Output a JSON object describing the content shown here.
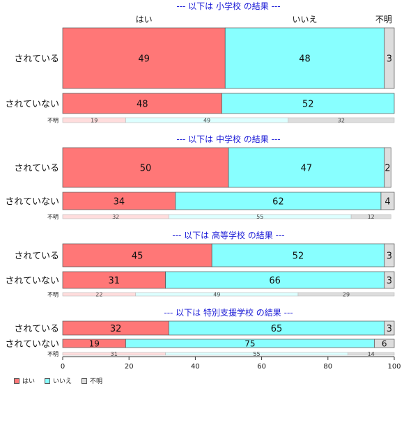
{
  "chart_data": {
    "type": "bar",
    "orientation": "horizontal-stacked-percent",
    "xlim": [
      0,
      100
    ],
    "xticks": [
      0,
      20,
      40,
      60,
      80,
      100
    ],
    "top_header": [
      "はい",
      "いいえ",
      "不明"
    ],
    "legend_position": "bottom-left",
    "legend": [
      {
        "label": "はい",
        "color": "#ff7777"
      },
      {
        "label": "いいえ",
        "color": "#88ffff"
      },
      {
        "label": "不明",
        "color": "#dddddd"
      }
    ],
    "panels": [
      {
        "title": "--- 以下は 小学校 の結果 ---",
        "rows": [
          {
            "label": "されている",
            "values": [
              49,
              48,
              3
            ]
          },
          {
            "label": "されていない",
            "values": [
              48,
              52,
              0
            ]
          },
          {
            "label": "不明",
            "values": [
              19,
              49,
              32
            ]
          }
        ]
      },
      {
        "title": "--- 以下は 中学校 の結果 ---",
        "rows": [
          {
            "label": "されている",
            "values": [
              50,
              47,
              2
            ]
          },
          {
            "label": "されていない",
            "values": [
              34,
              62,
              4
            ]
          },
          {
            "label": "不明",
            "values": [
              32,
              55,
              12
            ]
          }
        ]
      },
      {
        "title": "--- 以下は 高等学校 の結果 ---",
        "rows": [
          {
            "label": "されている",
            "values": [
              45,
              52,
              3
            ]
          },
          {
            "label": "されていない",
            "values": [
              31,
              66,
              3
            ]
          },
          {
            "label": "不明",
            "values": [
              22,
              49,
              29
            ]
          }
        ]
      },
      {
        "title": "--- 以下は 特別支援学校 の結果 ---",
        "rows": [
          {
            "label": "されている",
            "values": [
              32,
              65,
              3
            ]
          },
          {
            "label": "されていない",
            "values": [
              19,
              75,
              6
            ]
          },
          {
            "label": "不明",
            "values": [
              31,
              55,
              14
            ]
          }
        ]
      }
    ]
  }
}
